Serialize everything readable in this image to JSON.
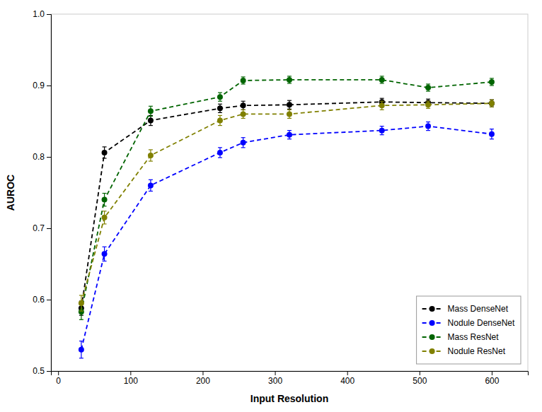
{
  "chart_data": {
    "type": "line",
    "x": [
      32,
      64,
      128,
      224,
      256,
      320,
      448,
      512,
      600
    ],
    "series": [
      {
        "name": "Mass DenseNet",
        "color": "#000000",
        "marker": "circle",
        "line_style": "dashed",
        "values": [
          0.588,
          0.806,
          0.851,
          0.868,
          0.872,
          0.873,
          0.877,
          0.876,
          0.875
        ],
        "errors": [
          0.01,
          0.008,
          0.007,
          0.006,
          0.006,
          0.006,
          0.005,
          0.005,
          0.005
        ]
      },
      {
        "name": "Nodule DenseNet",
        "color": "#0000ff",
        "marker": "circle",
        "line_style": "dashed",
        "values": [
          0.53,
          0.664,
          0.76,
          0.806,
          0.82,
          0.831,
          0.837,
          0.843,
          0.832
        ],
        "errors": [
          0.012,
          0.01,
          0.008,
          0.007,
          0.007,
          0.006,
          0.006,
          0.006,
          0.007
        ]
      },
      {
        "name": "Mass ResNet",
        "color": "#006400",
        "marker": "circle",
        "line_style": "dashed",
        "values": [
          0.583,
          0.74,
          0.864,
          0.884,
          0.907,
          0.908,
          0.908,
          0.897,
          0.905
        ],
        "errors": [
          0.011,
          0.009,
          0.007,
          0.006,
          0.005,
          0.005,
          0.005,
          0.005,
          0.005
        ]
      },
      {
        "name": "Nodule ResNet",
        "color": "#808000",
        "marker": "circle",
        "line_style": "dashed",
        "values": [
          0.595,
          0.715,
          0.802,
          0.851,
          0.86,
          0.86,
          0.872,
          0.873,
          0.875
        ],
        "errors": [
          0.011,
          0.009,
          0.008,
          0.007,
          0.006,
          0.006,
          0.006,
          0.005,
          0.005
        ]
      }
    ],
    "xlabel": "Input Resolution",
    "ylabel": "AUROC",
    "xlim": [
      -10,
      650
    ],
    "xticks": [
      0,
      100,
      200,
      300,
      400,
      500,
      600
    ],
    "ylim": [
      0.5,
      1.0
    ],
    "yticks": [
      0.5,
      0.6,
      0.7,
      0.8,
      0.9,
      {
        "value": 1.0,
        "label": "1.0"
      }
    ],
    "legend": "lower right",
    "grid": false
  }
}
